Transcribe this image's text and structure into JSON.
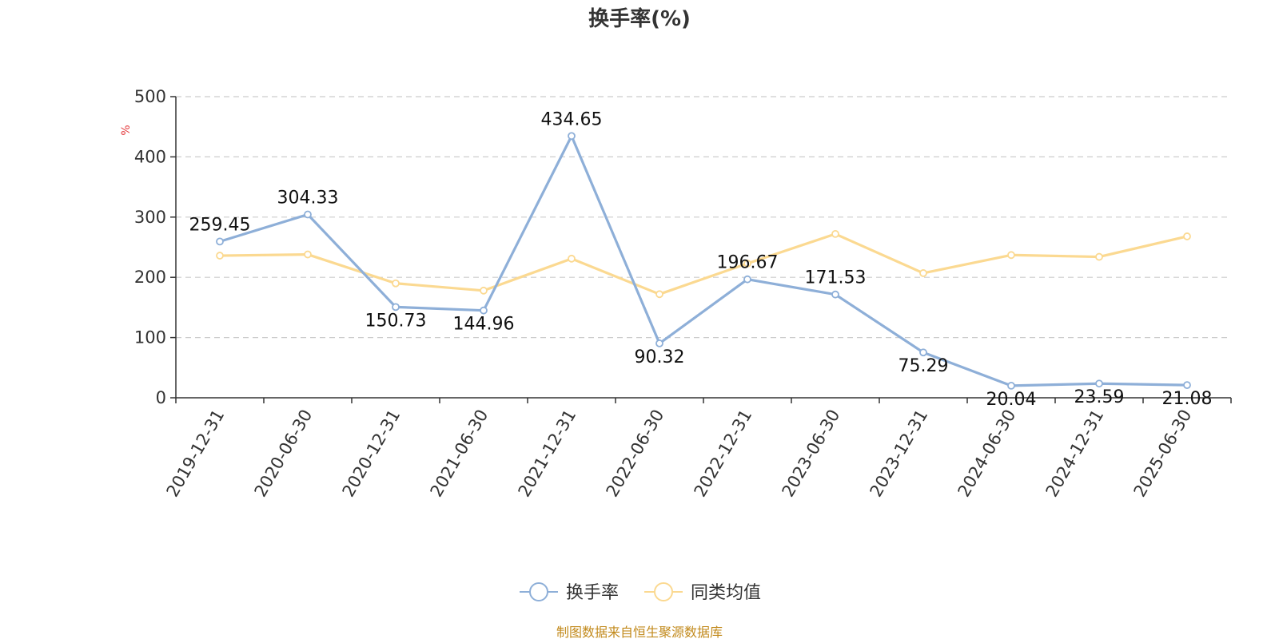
{
  "chart_data": {
    "type": "line",
    "title": "换手率(%)",
    "ylabel": "%",
    "ylim": [
      0,
      500
    ],
    "yticks": [
      0,
      100,
      200,
      300,
      400,
      500
    ],
    "grid": true,
    "legend_position": "bottom",
    "categories": [
      "2019-12-31",
      "2020-06-30",
      "2020-12-31",
      "2021-06-30",
      "2021-12-31",
      "2022-06-30",
      "2022-12-31",
      "2023-06-30",
      "2023-12-31",
      "2024-06-30",
      "2024-12-31",
      "2025-06-30"
    ],
    "series": [
      {
        "name": "换手率",
        "color": "#8eafd8",
        "values": [
          259.45,
          304.33,
          150.73,
          144.96,
          434.65,
          90.32,
          196.67,
          171.53,
          75.29,
          20.04,
          23.59,
          21.08
        ],
        "labels": [
          "259.45",
          "304.33",
          "150.73",
          "144.96",
          "434.65",
          "90.32",
          "196.67",
          "171.53",
          "75.29",
          "20.04",
          "23.59",
          "21.08"
        ]
      },
      {
        "name": "同类均值",
        "color": "#fbd991",
        "values": [
          236,
          238,
          190,
          178,
          231,
          172,
          223,
          272,
          207,
          237,
          234,
          268
        ]
      }
    ]
  },
  "footer": {
    "source": "制图数据来自恒生聚源数据库"
  }
}
